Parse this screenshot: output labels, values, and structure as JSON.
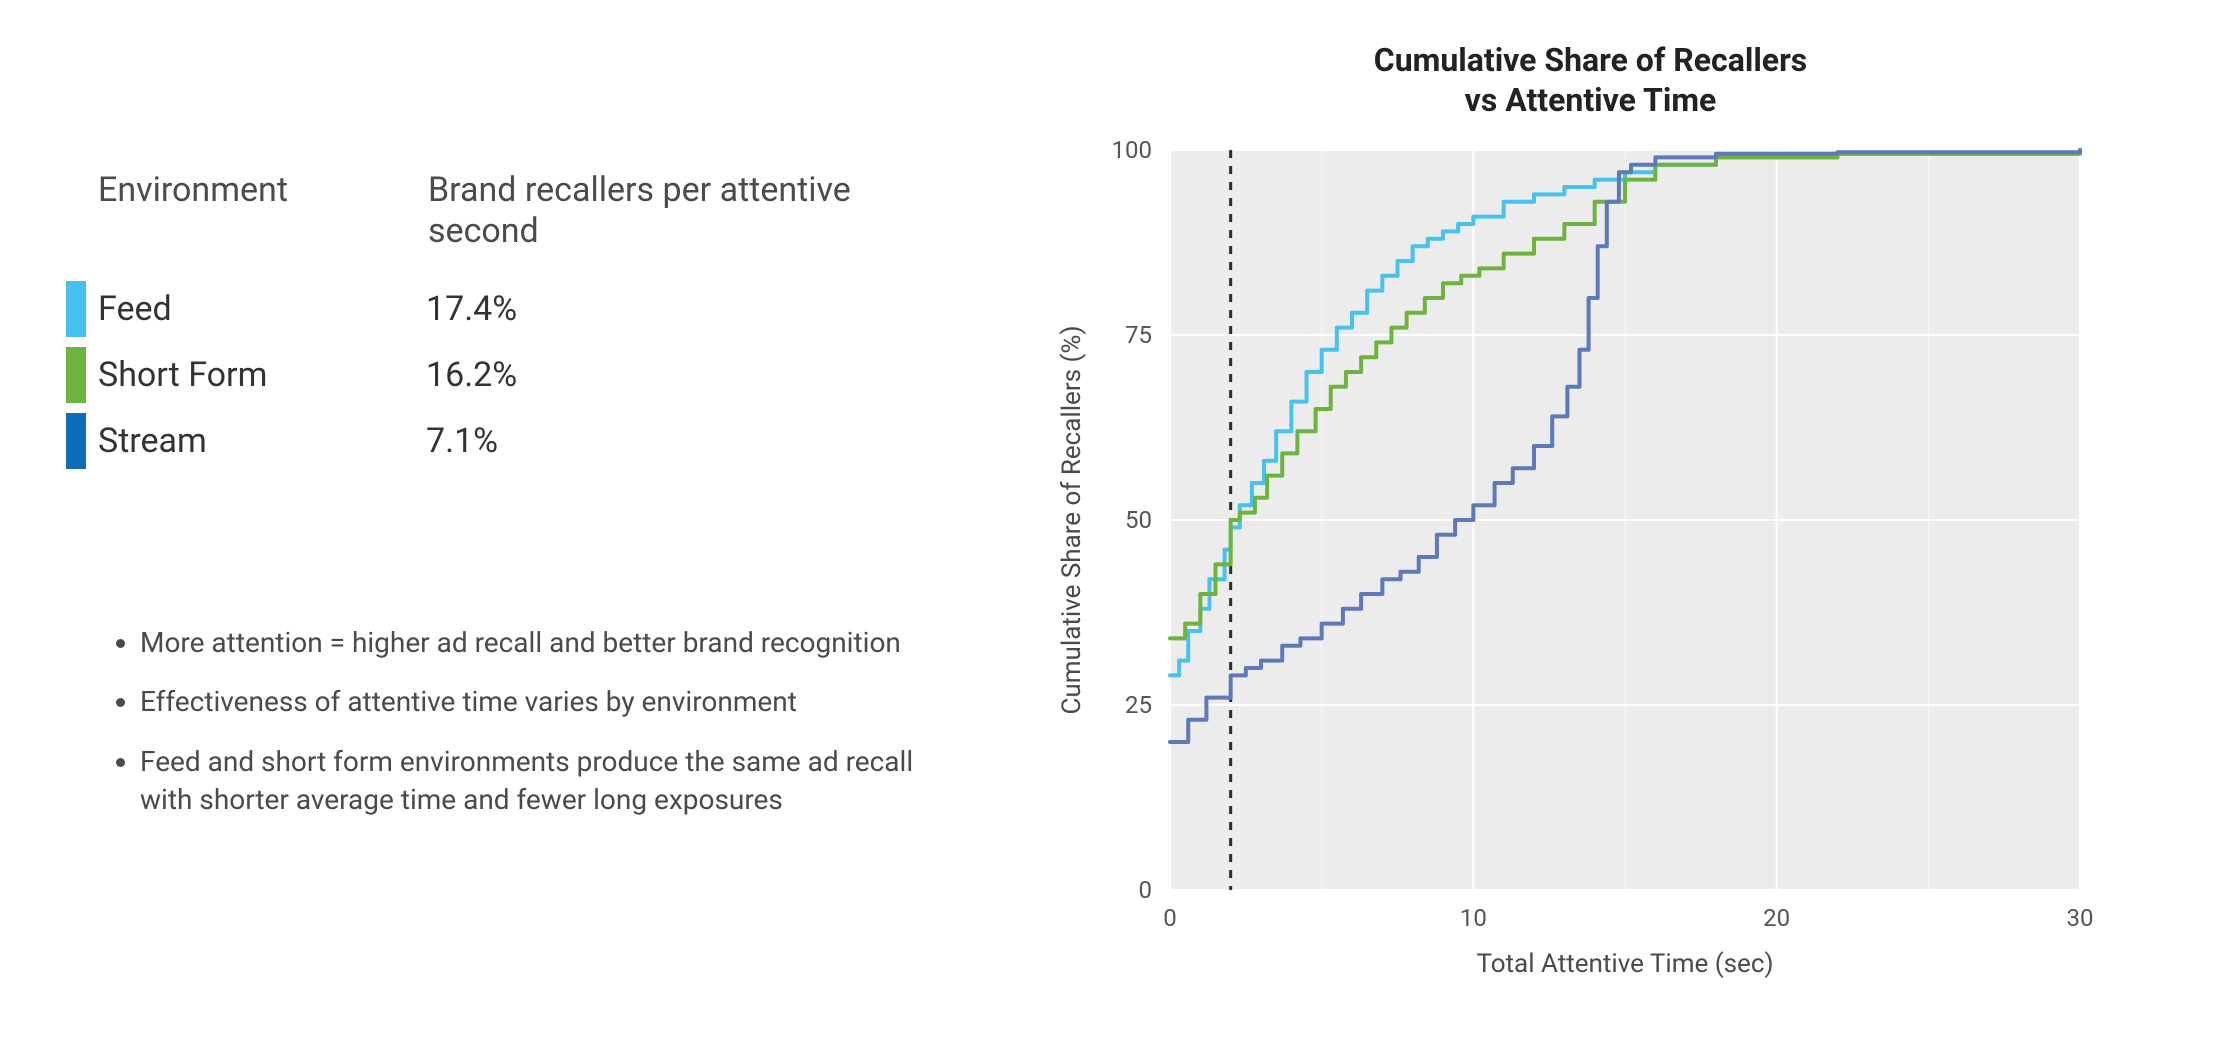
{
  "table": {
    "header_env": "Environment",
    "header_val": "Brand recallers per attentive second",
    "rows": [
      {
        "label": "Feed",
        "value": "17.4%",
        "color": "#47c1ed"
      },
      {
        "label": "Short Form",
        "value": "16.2%",
        "color": "#6fb33f"
      },
      {
        "label": "Stream",
        "value": "7.1%",
        "color": "#0e6bb5"
      }
    ]
  },
  "bullets": [
    "More attention = higher ad recall and better brand recognition",
    "Effectiveness of attentive time varies by environment",
    "Feed and short form environments produce the same ad recall with shorter average time and fewer long exposures"
  ],
  "chart": {
    "title_line1": "Cumulative Share of Recallers",
    "title_line2": "vs Attentive Time",
    "xlabel": "Total Attentive Time (sec)",
    "ylabel": "Cumulative Share of Recallers (%)",
    "xlim": [
      0,
      30
    ],
    "ylim": [
      0,
      100
    ],
    "xticks": [
      0,
      10,
      20,
      30
    ],
    "yticks": [
      0,
      25,
      50,
      75,
      100
    ],
    "plot_bg": "#ececec",
    "grid_color": "#ffffff",
    "vline_x": 2,
    "vline_color": "#2c2c2c",
    "vline_dash": "8,8",
    "line_width": 4,
    "series": [
      {
        "name": "Feed",
        "color": "#47c1ed",
        "points": [
          [
            0,
            29
          ],
          [
            0.3,
            31
          ],
          [
            0.6,
            35
          ],
          [
            1.0,
            38
          ],
          [
            1.3,
            42
          ],
          [
            1.8,
            46
          ],
          [
            2.0,
            49
          ],
          [
            2.3,
            52
          ],
          [
            2.7,
            55
          ],
          [
            3.1,
            58
          ],
          [
            3.5,
            62
          ],
          [
            4.0,
            66
          ],
          [
            4.5,
            70
          ],
          [
            5.0,
            73
          ],
          [
            5.5,
            76
          ],
          [
            6.0,
            78
          ],
          [
            6.5,
            81
          ],
          [
            7.0,
            83
          ],
          [
            7.5,
            85
          ],
          [
            8.0,
            87
          ],
          [
            8.5,
            88
          ],
          [
            9.0,
            89
          ],
          [
            9.5,
            90
          ],
          [
            10.0,
            91
          ],
          [
            11.0,
            93
          ],
          [
            12.0,
            94
          ],
          [
            13.0,
            95
          ],
          [
            14.0,
            96
          ],
          [
            15.0,
            97
          ],
          [
            16.0,
            98
          ],
          [
            18.0,
            99
          ],
          [
            22.0,
            99.5
          ],
          [
            30,
            100
          ]
        ]
      },
      {
        "name": "Short Form",
        "color": "#6fb33f",
        "points": [
          [
            0,
            34
          ],
          [
            0.5,
            36
          ],
          [
            1.0,
            40
          ],
          [
            1.5,
            44
          ],
          [
            2.0,
            50
          ],
          [
            2.3,
            51
          ],
          [
            2.8,
            53
          ],
          [
            3.2,
            56
          ],
          [
            3.7,
            59
          ],
          [
            4.2,
            62
          ],
          [
            4.8,
            65
          ],
          [
            5.3,
            68
          ],
          [
            5.8,
            70
          ],
          [
            6.3,
            72
          ],
          [
            6.8,
            74
          ],
          [
            7.3,
            76
          ],
          [
            7.8,
            78
          ],
          [
            8.4,
            80
          ],
          [
            9.0,
            82
          ],
          [
            9.6,
            83
          ],
          [
            10.2,
            84
          ],
          [
            11.0,
            86
          ],
          [
            12.0,
            88
          ],
          [
            13.0,
            90
          ],
          [
            14.0,
            93
          ],
          [
            15.0,
            96
          ],
          [
            16.0,
            98
          ],
          [
            18.0,
            99
          ],
          [
            22.0,
            99.5
          ],
          [
            30,
            100
          ]
        ]
      },
      {
        "name": "Stream",
        "color": "#5d79b9",
        "points": [
          [
            0,
            20
          ],
          [
            0.6,
            23
          ],
          [
            1.2,
            26
          ],
          [
            2.0,
            29
          ],
          [
            2.5,
            30
          ],
          [
            3.0,
            31
          ],
          [
            3.7,
            33
          ],
          [
            4.3,
            34
          ],
          [
            5.0,
            36
          ],
          [
            5.7,
            38
          ],
          [
            6.3,
            40
          ],
          [
            7.0,
            42
          ],
          [
            7.6,
            43
          ],
          [
            8.2,
            45
          ],
          [
            8.8,
            48
          ],
          [
            9.4,
            50
          ],
          [
            10.0,
            52
          ],
          [
            10.7,
            55
          ],
          [
            11.3,
            57
          ],
          [
            12.0,
            60
          ],
          [
            12.6,
            64
          ],
          [
            13.1,
            68
          ],
          [
            13.5,
            73
          ],
          [
            13.8,
            80
          ],
          [
            14.1,
            87
          ],
          [
            14.4,
            93
          ],
          [
            14.8,
            97
          ],
          [
            15.2,
            98
          ],
          [
            16.0,
            99
          ],
          [
            18.0,
            99.5
          ],
          [
            22.0,
            99.7
          ],
          [
            30,
            100
          ]
        ]
      }
    ]
  }
}
